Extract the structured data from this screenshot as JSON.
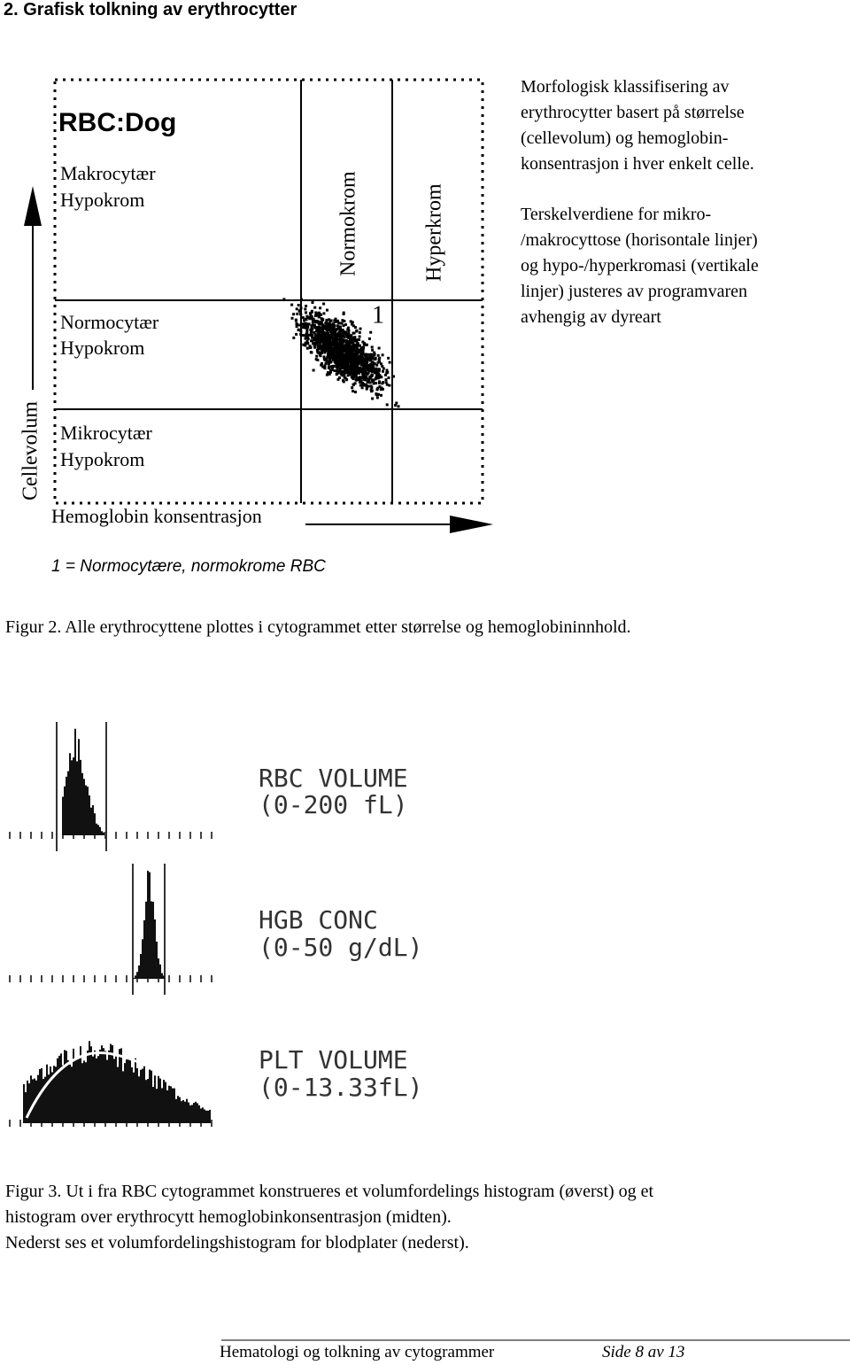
{
  "heading": "2. Grafisk tolkning av erythrocytter",
  "figure2": {
    "plot": {
      "title": "RBC:Dog",
      "regions": [
        [
          "Makrocytær",
          "Hypokrom"
        ],
        [
          "Normocytær",
          "Hypokrom"
        ],
        [
          "Mikrocytær",
          "Hypokrom"
        ]
      ],
      "columns": [
        "Normokrom",
        "Hyperkrom"
      ],
      "marker": "1",
      "y_axis": "Cellevolum",
      "x_axis": "Hemoglobin konsentrasjon",
      "legend": "1 = Normocytære, normokrome RBC"
    },
    "side_text": [
      [
        "Morfologisk klassifisering av",
        "erythrocytter basert på størrelse",
        "(cellevolum) og hemoglobin-",
        "konsentrasjon i hver enkelt celle."
      ],
      [
        "Terskelverdiene for mikro-",
        "/makrocyttose (horisontale linjer)",
        "og hypo-/hyperkromasi (vertikale",
        "linjer) justeres av programvaren",
        "avhengig av dyreart"
      ]
    ],
    "caption": "Figur 2. Alle erythrocyttene plottes i cytogrammet etter størrelse og hemoglobininnhold."
  },
  "figure3": {
    "histograms": [
      [
        "RBC VOLUME",
        "(0-200 fL)"
      ],
      [
        "HGB CONC",
        "(0-50 g/dL)"
      ],
      [
        "PLT VOLUME",
        "(0-13.33fL)"
      ]
    ],
    "caption": [
      "Figur 3. Ut i fra RBC cytogrammet konstrueres et volumfordelings histogram (øverst) og et",
      "histogram over erythrocytt hemoglobinkonsentrasjon (midten).",
      "Nederst ses et volumfordelingshistogram for blodplater (nederst)."
    ]
  },
  "footer": {
    "title": "Hematologi og tolkning av cytogrammer",
    "page": "Side 8 av 13"
  }
}
